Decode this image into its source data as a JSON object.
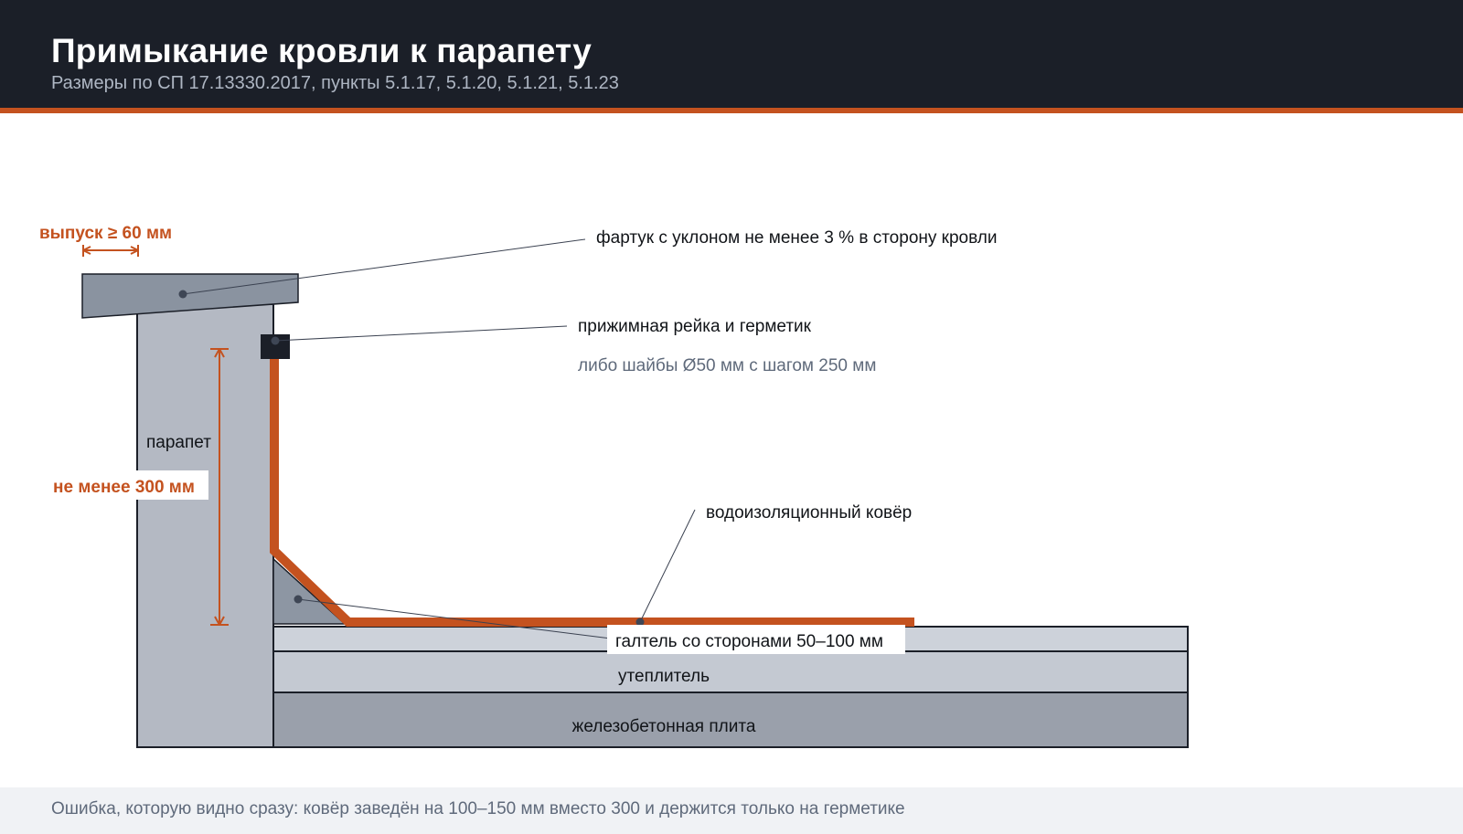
{
  "header": {
    "title": "Примыкание кровли к парапету",
    "subtitle": "Размеры по СП 17.13330.2017, пункты 5.1.17, 5.1.20, 5.1.21, 5.1.23"
  },
  "diagram": {
    "labels": {
      "overhang": "выпуск ≥ 60 мм",
      "apron": "фартук с уклоном не менее 3 % в сторону кровли",
      "clamp_rail": "прижимная рейка и герметик",
      "washers": "либо шайбы Ø50 мм с шагом 250 мм",
      "parapet": "парапет",
      "height": "не менее 300 мм",
      "membrane": "водоизоляционный ковёр",
      "fillet": "галтель со сторонами 50–100 мм",
      "insulation": "утеплитель",
      "slab": "железобетонная плита"
    },
    "colors": {
      "accent": "#c4521f",
      "header_bg": "#1b1f28",
      "parapet": "#b4b9c3",
      "apron": "#8a93a0",
      "insulation": "#c4c9d2",
      "slab": "#9aa0ab",
      "screed": "#cdd2da",
      "fillet": "#8d96a3",
      "clamp": "#1b1f28"
    }
  },
  "footer": {
    "note": "Ошибка, которую видно сразу: ковёр заведён на 100–150 мм вместо 300 и держится только на герметике"
  }
}
